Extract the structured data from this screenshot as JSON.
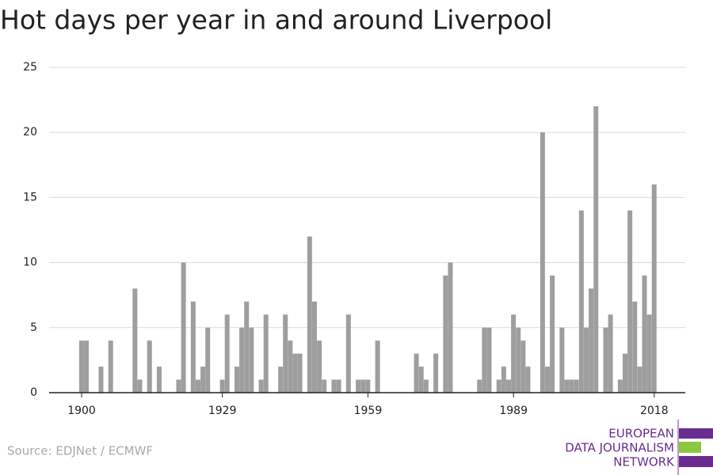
{
  "chart_data": {
    "type": "bar",
    "title": "Hot days per year in and around Liverpool",
    "source": "Source: EDJNet / ECMWF",
    "color": "#9e9e9e",
    "x": [
      1900,
      1901,
      1902,
      1903,
      1904,
      1905,
      1906,
      1907,
      1908,
      1909,
      1910,
      1911,
      1912,
      1913,
      1914,
      1915,
      1916,
      1917,
      1918,
      1919,
      1920,
      1921,
      1922,
      1923,
      1924,
      1925,
      1926,
      1927,
      1928,
      1929,
      1930,
      1931,
      1932,
      1933,
      1934,
      1935,
      1936,
      1937,
      1938,
      1939,
      1940,
      1941,
      1942,
      1943,
      1944,
      1945,
      1946,
      1947,
      1948,
      1949,
      1950,
      1951,
      1952,
      1953,
      1954,
      1955,
      1956,
      1957,
      1958,
      1959,
      1960,
      1961,
      1962,
      1963,
      1964,
      1965,
      1966,
      1967,
      1968,
      1969,
      1970,
      1971,
      1972,
      1973,
      1974,
      1975,
      1976,
      1977,
      1978,
      1979,
      1980,
      1981,
      1982,
      1983,
      1984,
      1985,
      1986,
      1987,
      1988,
      1989,
      1990,
      1991,
      1992,
      1993,
      1994,
      1995,
      1996,
      1997,
      1998,
      1999,
      2000,
      2001,
      2002,
      2003,
      2004,
      2005,
      2006,
      2007,
      2008,
      2009,
      2010,
      2011,
      2012,
      2013,
      2014,
      2015,
      2016,
      2017,
      2018
    ],
    "values": [
      4,
      4,
      0,
      0,
      2,
      0,
      4,
      0,
      0,
      0,
      0,
      8,
      1,
      0,
      4,
      0,
      2,
      0,
      0,
      0,
      1,
      10,
      0,
      7,
      1,
      2,
      5,
      0,
      0,
      1,
      6,
      0,
      2,
      5,
      7,
      5,
      0,
      1,
      6,
      0,
      0,
      2,
      6,
      4,
      3,
      3,
      0,
      12,
      7,
      4,
      1,
      0,
      1,
      1,
      0,
      6,
      0,
      1,
      1,
      1,
      0,
      4,
      0,
      0,
      0,
      0,
      0,
      0,
      0,
      3,
      2,
      1,
      0,
      3,
      0,
      9,
      10,
      0,
      0,
      0,
      0,
      0,
      1,
      5,
      5,
      0,
      1,
      2,
      1,
      6,
      5,
      4,
      2,
      0,
      0,
      20,
      2,
      9,
      0,
      5,
      1,
      1,
      1,
      14,
      5,
      8,
      22,
      0,
      5,
      6,
      0,
      1,
      3,
      14,
      7,
      2,
      9,
      6,
      16
    ],
    "xlim": [
      1893.3,
      2024.4
    ],
    "xticks": [
      1900,
      1929,
      1959,
      1989,
      2018
    ],
    "ylim": [
      0,
      25
    ],
    "yticks": [
      0,
      5,
      10,
      15,
      20,
      25
    ],
    "grid": true
  },
  "logo": {
    "lines": [
      "EUROPEAN",
      "DATA JOURNALISM",
      "NETWORK"
    ]
  }
}
